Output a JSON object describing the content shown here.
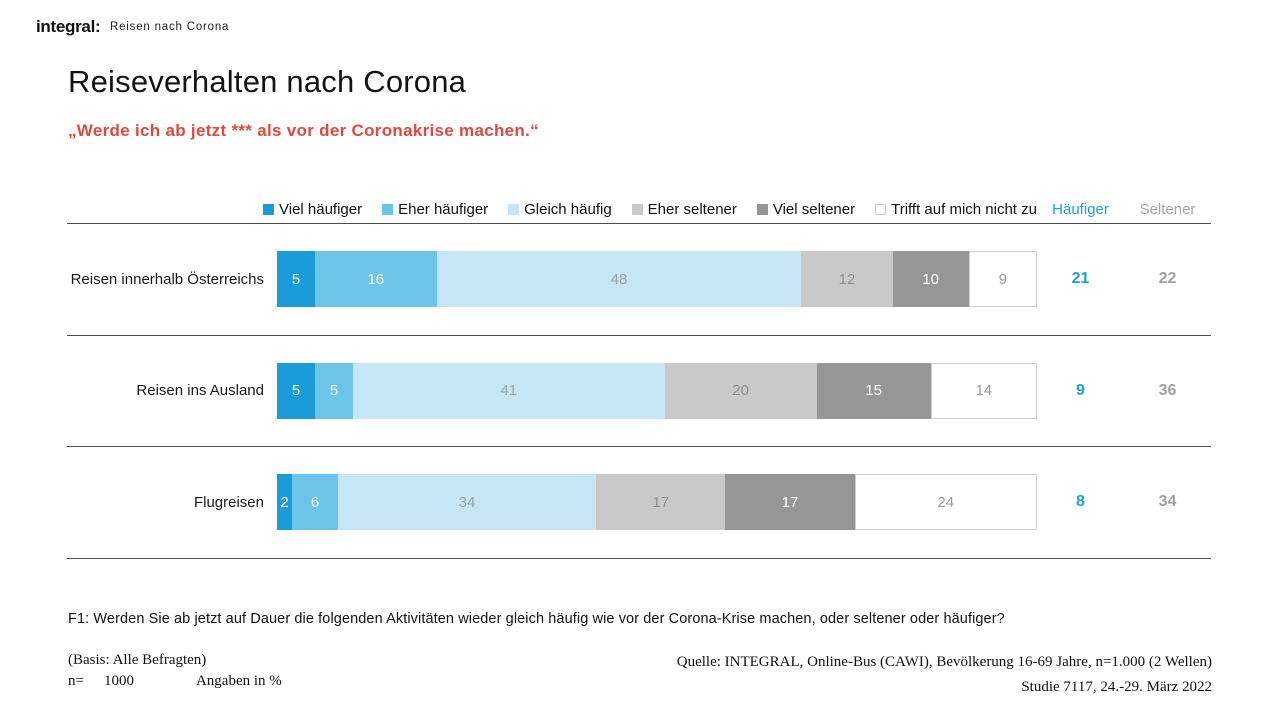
{
  "header": {
    "logo": "integral:",
    "logo_subtitle": "Reisen nach Corona"
  },
  "title": "Reiseverhalten nach Corona",
  "subtitle": "„Werde ich ab jetzt *** als vor der Coronakrise machen.“",
  "summary": {
    "more_label": "Häufiger",
    "less_label": "Seltener",
    "more_color": "#1d9ed9",
    "less_color": "#a6a6a6"
  },
  "chart_data": {
    "type": "bar",
    "orientation": "horizontal",
    "stacked": true,
    "unit": "%",
    "xlim": [
      0,
      100
    ],
    "grid": false,
    "legend_position": "top",
    "categories": [
      "Reisen innerhalb Österreichs",
      "Reisen ins Ausland",
      "Flugreisen"
    ],
    "series": [
      {
        "name": "Viel häufiger",
        "color": "#1b9cd8",
        "values": [
          5,
          5,
          2
        ]
      },
      {
        "name": "Eher häufiger",
        "color": "#6cc4e9",
        "values": [
          16,
          5,
          6
        ]
      },
      {
        "name": "Gleich häufig",
        "color": "#c7e6f5",
        "values": [
          48,
          41,
          34
        ]
      },
      {
        "name": "Eher seltener",
        "color": "#c9c9c9",
        "values": [
          12,
          20,
          17
        ]
      },
      {
        "name": "Viel seltener",
        "color": "#969696",
        "values": [
          10,
          15,
          17
        ]
      },
      {
        "name": "Trifft auf mich nicht zu",
        "color": "#ffffff",
        "values": [
          9,
          14,
          24
        ]
      }
    ],
    "totals": {
      "haeufiger": [
        21,
        9,
        8
      ],
      "seltener": [
        22,
        36,
        34
      ]
    }
  },
  "footnote": "F1: Werden Sie ab jetzt auf Dauer die folgenden Aktivitäten wieder gleich häufig wie vor der Corona-Krise machen, oder seltener oder häufiger?",
  "footer": {
    "basis": "(Basis: Alle Befragten)",
    "n_label": "n=",
    "n_value": "1000",
    "unit_note": "Angaben in %",
    "source_line1": "Quelle: INTEGRAL, Online-Bus (CAWI), Bevölkerung 16-69 Jahre, n=1.000 (2 Wellen)",
    "source_line2": "Studie 7117, 24.-29. März 2022"
  }
}
